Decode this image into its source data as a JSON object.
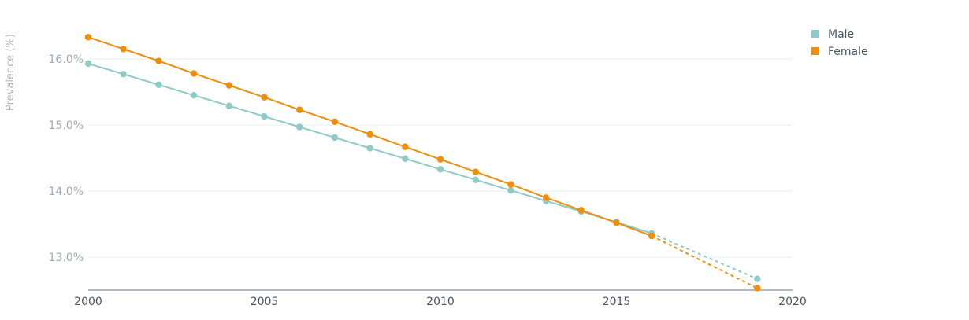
{
  "chart_data": {
    "type": "line",
    "title": "",
    "xlabel": "",
    "ylabel": "Prevalence (%)",
    "x_ticks": [
      "2000",
      "2005",
      "2010",
      "2015",
      "2020"
    ],
    "y_ticks": [
      "13.0%",
      "14.0%",
      "15.0%",
      "16.0%"
    ],
    "xlim": [
      2000,
      2020
    ],
    "ylim": [
      12.5,
      16.6
    ],
    "grid": "horizontal",
    "legend_position": "top-right",
    "x": [
      2000,
      2001,
      2002,
      2003,
      2004,
      2005,
      2006,
      2007,
      2008,
      2009,
      2010,
      2011,
      2012,
      2013,
      2014,
      2015,
      2016
    ],
    "projection_x": [
      2016,
      2019
    ],
    "series": [
      {
        "name": "Male",
        "color": "#8ecac6",
        "values": [
          15.93,
          15.77,
          15.61,
          15.45,
          15.29,
          15.13,
          14.97,
          14.81,
          14.65,
          14.49,
          14.33,
          14.17,
          14.01,
          13.85,
          13.69,
          13.53,
          13.36
        ],
        "projection_values": [
          13.36,
          12.67
        ]
      },
      {
        "name": "Female",
        "color": "#ef8d0c",
        "values": [
          16.33,
          16.15,
          15.97,
          15.78,
          15.6,
          15.42,
          15.23,
          15.05,
          14.86,
          14.67,
          14.48,
          14.29,
          14.1,
          13.9,
          13.71,
          13.52,
          13.32
        ],
        "projection_values": [
          13.32,
          12.53
        ]
      }
    ]
  }
}
